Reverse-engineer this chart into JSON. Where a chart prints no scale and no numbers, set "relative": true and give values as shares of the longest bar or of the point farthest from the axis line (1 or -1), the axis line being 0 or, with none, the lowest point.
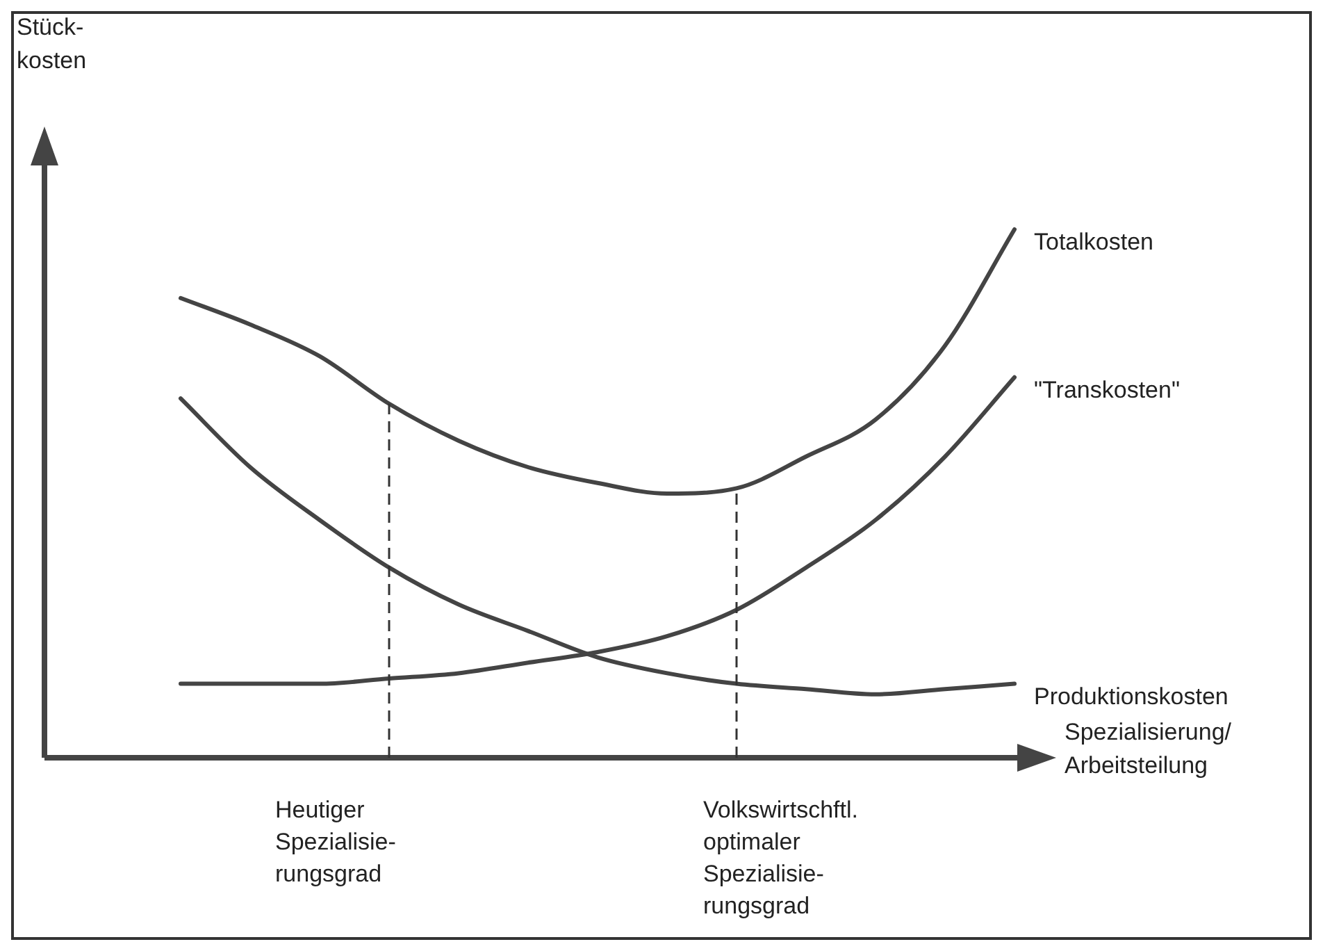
{
  "chart_data": {
    "type": "line",
    "relative": true,
    "categories": [
      null,
      null,
      null,
      null,
      null,
      null,
      null,
      null,
      null,
      null,
      null,
      null,
      null
    ],
    "series": [
      {
        "name": "Totalkosten",
        "color": "#444444",
        "values": [
          0.87,
          0.82,
          0.76,
          0.67,
          0.6,
          0.55,
          0.52,
          0.5,
          0.51,
          0.57,
          0.64,
          0.78,
          1
        ]
      },
      {
        "name": "\"Transkosten\"",
        "color": "#444444",
        "values": [
          0.14,
          0.14,
          0.14,
          0.15,
          0.16,
          0.18,
          0.2,
          0.23,
          0.28,
          0.36,
          0.45,
          0.57,
          0.72
        ]
      },
      {
        "name": "Produktionskosten",
        "color": "#444444",
        "values": [
          0.68,
          0.55,
          0.45,
          0.36,
          0.29,
          0.24,
          0.19,
          0.16,
          0.14,
          0.13,
          0.12,
          0.13,
          0.14
        ]
      }
    ],
    "annotations": [
      "Stück-\nkosten",
      "Spezialisierung/\nArbeitsteilung",
      "Heutiger\nSpezialisie-\nrungsgrad",
      "Volkswirtschftl.\noptimaler\nSpezialisie-\nrungsgrad"
    ],
    "legend": false,
    "marker": "none",
    "line_style": "solid"
  }
}
